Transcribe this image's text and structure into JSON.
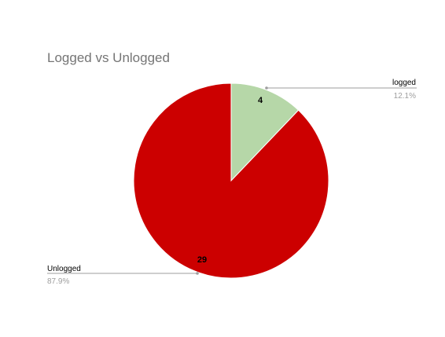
{
  "chart_data": {
    "type": "pie",
    "title": "Logged vs Unlogged",
    "start_angle_deg": 0,
    "slices": [
      {
        "label": "logged",
        "value": 4,
        "percent_label": "12.1%",
        "color": "#b6d7a8"
      },
      {
        "label": "Unlogged",
        "value": 29,
        "percent_label": "87.9%",
        "color": "#cc0000"
      }
    ],
    "leader_line_color": "#9e9e9e",
    "label_text_color": "#000000",
    "percent_text_color": "#9e9e9e",
    "value_text_color": "#000000"
  }
}
